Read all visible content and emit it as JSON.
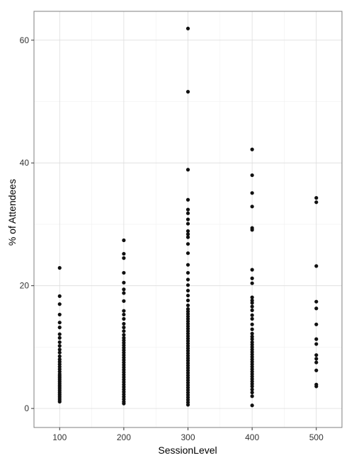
{
  "chart_data": {
    "type": "scatter",
    "title": "",
    "xlabel": "SessionLevel",
    "ylabel": "% of Attendees",
    "xlim": [
      60,
      540
    ],
    "ylim": [
      -3.1,
      64.7
    ],
    "x_ticks": [
      100,
      200,
      300,
      400,
      500
    ],
    "x_tick_labels": [
      "100",
      "200",
      "300",
      "400",
      "500"
    ],
    "y_ticks": [
      0,
      20,
      40,
      60
    ],
    "y_tick_labels": [
      "0",
      "20",
      "40",
      "60"
    ],
    "grid": true,
    "legend": "none",
    "colors": {
      "point": "#111111",
      "grid_major": "#dcdcdc",
      "grid_minor": "#f0f0f0",
      "panel_border": "#7f7f7f"
    },
    "series": [
      {
        "x": 100,
        "values": [
          22.9,
          18.3,
          17.0,
          15.3,
          14.0,
          13.2,
          12.1,
          11.5,
          10.8,
          10.2,
          9.6,
          9.1,
          8.5,
          8.0,
          7.6,
          7.2,
          6.8,
          6.4,
          6.0,
          5.6,
          5.3,
          5.0,
          4.7,
          4.4,
          4.1,
          3.8,
          3.5,
          3.2,
          2.9,
          2.6,
          2.3,
          2.0,
          1.7,
          1.4,
          1.1
        ]
      },
      {
        "x": 200,
        "values": [
          27.4,
          25.2,
          24.5,
          22.1,
          20.5,
          19.4,
          18.8,
          17.5,
          15.9,
          15.3,
          14.6,
          13.8,
          13.2,
          12.6,
          12.0,
          11.5,
          11.1,
          10.7,
          10.3,
          9.9,
          9.5,
          9.1,
          8.7,
          8.3,
          7.9,
          7.5,
          7.1,
          6.7,
          6.3,
          5.9,
          5.5,
          5.1,
          4.7,
          4.3,
          3.9,
          3.5,
          3.1,
          2.7,
          2.3,
          1.9,
          1.5,
          1.1,
          0.8
        ]
      },
      {
        "x": 300,
        "values": [
          61.9,
          51.6,
          38.9,
          34.0,
          32.4,
          31.8,
          30.8,
          30.1,
          28.9,
          28.4,
          27.9,
          26.8,
          25.3,
          23.4,
          22.1,
          21.0,
          20.1,
          19.2,
          18.4,
          17.6,
          16.8,
          16.2,
          15.8,
          15.4,
          15.0,
          14.6,
          14.2,
          13.8,
          13.4,
          13.0,
          12.6,
          12.2,
          11.8,
          11.4,
          11.0,
          10.6,
          10.2,
          9.8,
          9.4,
          9.0,
          8.6,
          8.2,
          7.8,
          7.4,
          7.0,
          6.6,
          6.2,
          5.8,
          5.4,
          5.0,
          4.6,
          4.2,
          3.8,
          3.4,
          3.0,
          2.6,
          2.2,
          1.8,
          1.4,
          1.0,
          0.6
        ]
      },
      {
        "x": 400,
        "values": [
          42.2,
          38.0,
          35.1,
          32.9,
          29.4,
          29.1,
          22.6,
          21.2,
          20.4,
          18.1,
          17.6,
          17.2,
          16.6,
          16.0,
          15.2,
          14.6,
          13.7,
          12.9,
          12.2,
          11.7,
          11.3,
          10.8,
          10.4,
          10.0,
          9.6,
          9.2,
          8.8,
          8.4,
          8.0,
          7.6,
          7.2,
          6.8,
          6.4,
          6.0,
          5.6,
          5.2,
          4.8,
          4.4,
          4.0,
          3.6,
          3.1,
          2.6,
          2.0,
          0.5
        ]
      },
      {
        "x": 500,
        "values": [
          34.3,
          33.6,
          23.2,
          17.4,
          16.3,
          13.7,
          11.3,
          10.5,
          8.7,
          8.1,
          7.5,
          6.2,
          3.9,
          3.6
        ]
      }
    ]
  }
}
